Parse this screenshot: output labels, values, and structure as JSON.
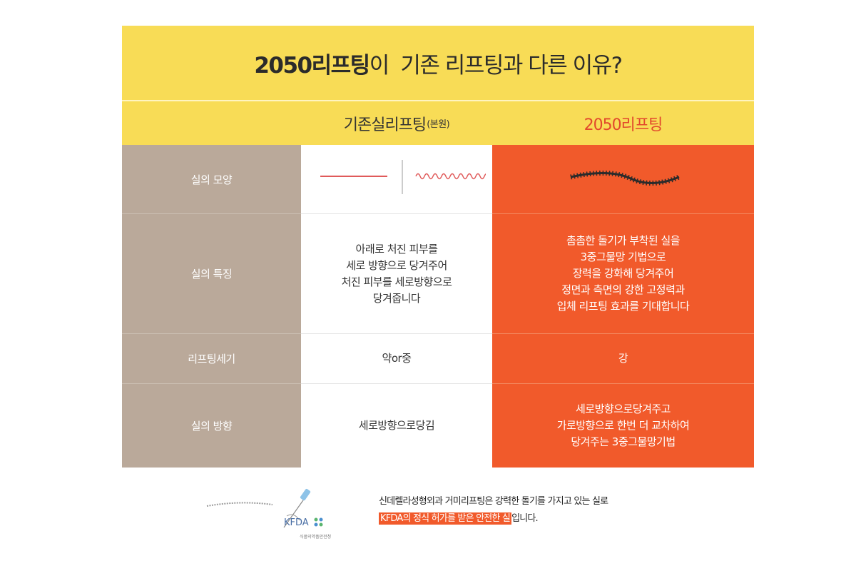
{
  "banner": {
    "title_bold": "2050리프팅",
    "title_rest": "이  기존 리프팅과 다른 이유?"
  },
  "header": {
    "col_a": "기존실리프팅",
    "col_a_note": "(본원)",
    "col_b": "2050리프팅"
  },
  "rows": [
    {
      "label": "실의 모양",
      "a": "",
      "b": ""
    },
    {
      "label": "실의 특징",
      "a_lines": [
        "아래로 처진 피부를",
        "세로 방향으로 당겨주어",
        "처진 피부를 세로방향으로",
        "당겨줍니다"
      ],
      "b_lines": [
        "촘촘한 돌기가 부착된 실을",
        "3중그물망 기법으로",
        "장력을 강화해 당겨주어",
        "정면과 측면의 강한 고정력과",
        "입체 리프팅 효과를 기대합니다"
      ]
    },
    {
      "label": "리프팅세기",
      "a": "약or중",
      "b": "강"
    },
    {
      "label": "실의 방향",
      "a": "세로방향으로당김",
      "b_lines": [
        "세로방향으로당겨주고",
        "가로방향으로 한번 더 교차하여",
        "당겨주는 3중그물망기법"
      ]
    }
  ],
  "footer": {
    "line1": "신데렐라성형외과 거미리프팅은 강력한 돌기를 가지고 있는 실로",
    "highlight": "KFDA의 정식 허가를 받은 안전한 실",
    "line2_rest": "입니다.",
    "kfda_logo": "KFDA",
    "kfda_sub": "식품의약품안전청"
  },
  "colors": {
    "banner": "#f8dc56",
    "label_column": "#baa99a",
    "accent": "#f15a2b",
    "accent_text": "#e2492c"
  }
}
